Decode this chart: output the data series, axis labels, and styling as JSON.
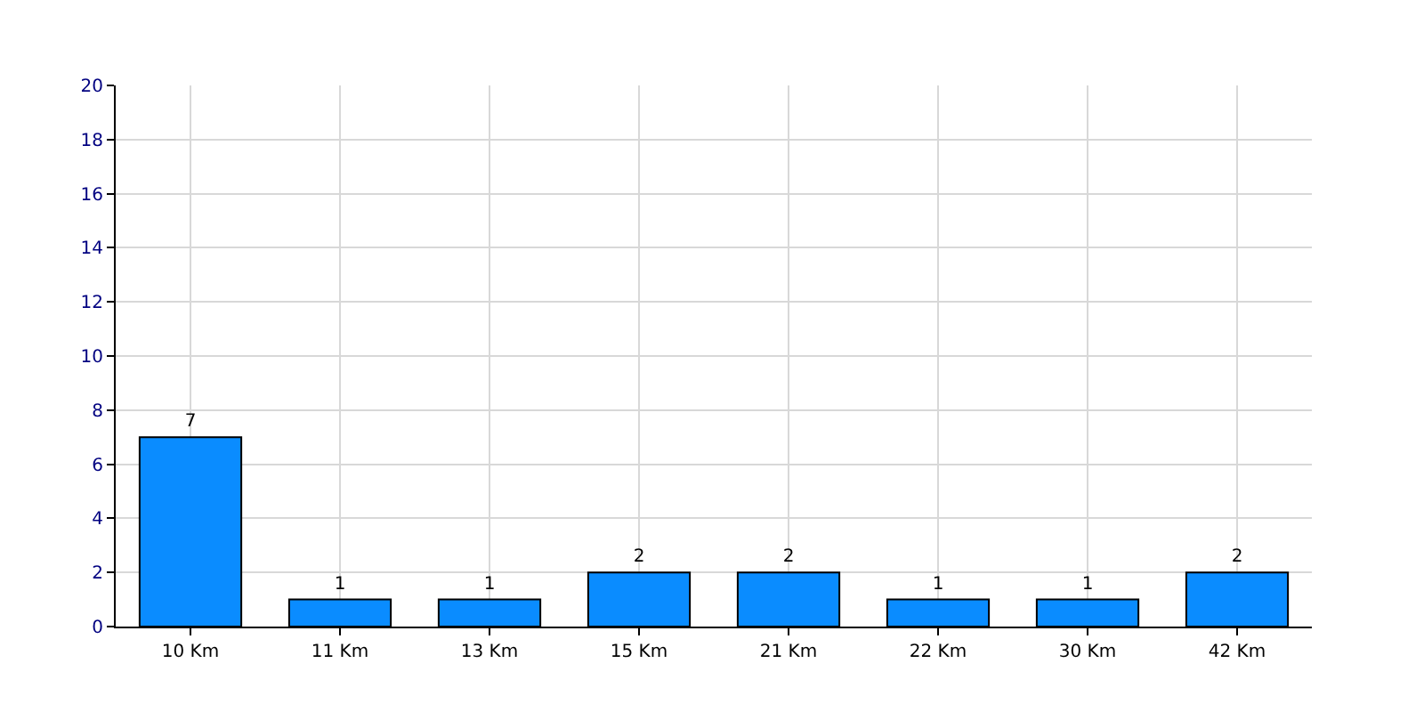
{
  "chart_data": {
    "type": "bar",
    "categories": [
      "10 Km",
      "11 Km",
      "13 Km",
      "15 Km",
      "21 Km",
      "22 Km",
      "30 Km",
      "42 Km"
    ],
    "values": [
      7,
      1,
      1,
      2,
      2,
      1,
      1,
      2
    ],
    "color": "#0a8cff",
    "ylim": [
      0,
      20
    ],
    "yticks": [
      0,
      2,
      4,
      6,
      8,
      10,
      12,
      14,
      16,
      18,
      20
    ],
    "grid": true,
    "data_labels": true
  }
}
